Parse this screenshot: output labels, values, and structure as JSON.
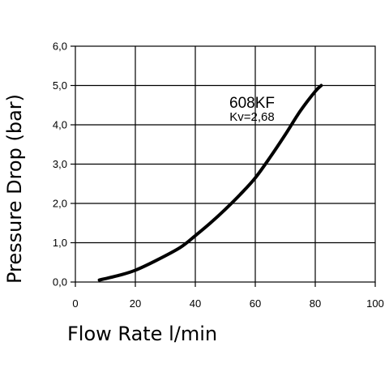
{
  "chart_data": {
    "type": "line",
    "title": "",
    "xlabel": "Flow Rate l/min",
    "ylabel": "Pressure Drop (bar)",
    "xlim": [
      0,
      100
    ],
    "ylim": [
      0,
      6
    ],
    "xticks": [
      "0",
      "20",
      "40",
      "60",
      "80",
      "100"
    ],
    "yticks": [
      "0,0",
      "1,0",
      "2,0",
      "3,0",
      "4,0",
      "5,0",
      "6,0"
    ],
    "grid": true,
    "legend": "none",
    "annotations": [
      {
        "text": "608KF"
      },
      {
        "text": "Kv=2,68"
      }
    ],
    "series": [
      {
        "x": [
          8,
          15,
          20,
          27,
          35,
          40,
          45,
          50,
          55,
          60,
          65,
          70,
          75,
          80,
          82
        ],
        "y": [
          0.05,
          0.18,
          0.3,
          0.55,
          0.88,
          1.18,
          1.5,
          1.85,
          2.23,
          2.65,
          3.18,
          3.75,
          4.35,
          4.85,
          5.0
        ]
      }
    ]
  }
}
